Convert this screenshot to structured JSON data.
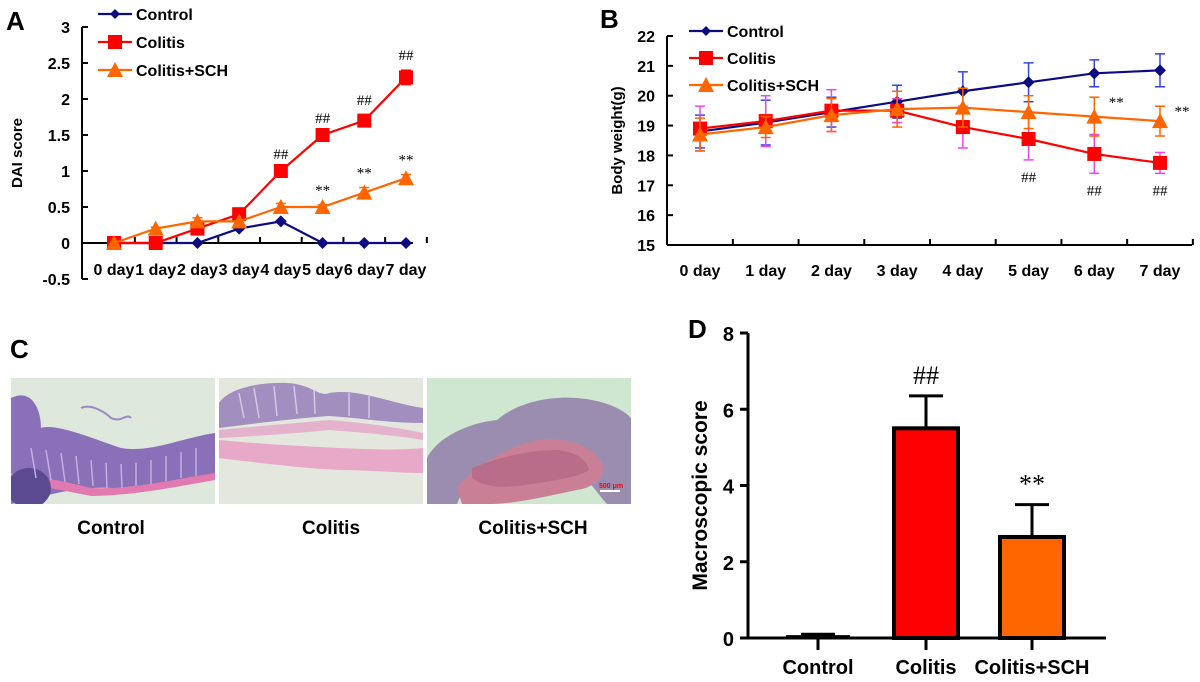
{
  "chart_data": [
    {
      "panel": "A",
      "type": "line",
      "title": "",
      "xlabel": "",
      "ylabel": "DAI score",
      "ylim": [
        -0.5,
        3
      ],
      "yticks": [
        "-0.5",
        "0",
        "0.5",
        "1",
        "1.5",
        "2",
        "2.5",
        "3"
      ],
      "categories": [
        "0 day",
        "1 day",
        "2 day",
        "3 day",
        "4 day",
        "5 day",
        "6 day",
        "7 day"
      ],
      "legend": "top-left",
      "series": [
        {
          "name": "Control",
          "color": "#0c0c80",
          "marker": "diamond",
          "values": [
            0,
            0,
            0,
            0.2,
            0.3,
            0,
            0,
            0
          ],
          "errors": [
            0,
            0,
            0,
            0,
            0,
            0,
            0,
            0
          ]
        },
        {
          "name": "Colitis",
          "color": "#ff0000",
          "marker": "square",
          "values": [
            0,
            0,
            0.2,
            0.4,
            1.0,
            1.5,
            1.7,
            2.3
          ],
          "errors": [
            0,
            0,
            0,
            0,
            0.03,
            0.03,
            0.08,
            0.1
          ],
          "annotations": [
            "",
            "",
            "",
            "",
            "##",
            "##",
            "##",
            "##"
          ]
        },
        {
          "name": "Colitis+SCH",
          "color": "#ff6600",
          "marker": "triangle",
          "values": [
            0,
            0.2,
            0.3,
            0.3,
            0.5,
            0.5,
            0.7,
            0.9
          ],
          "errors": [
            0,
            0.02,
            0.05,
            0,
            0.05,
            0.03,
            0.07,
            0.05
          ],
          "annotations": [
            "",
            "",
            "",
            "",
            "",
            "**",
            "**",
            "**"
          ]
        }
      ]
    },
    {
      "panel": "B",
      "type": "line",
      "title": "",
      "xlabel": "",
      "ylabel": "Body weight(g)",
      "ylim": [
        15,
        22
      ],
      "yticks": [
        "15",
        "16",
        "17",
        "18",
        "19",
        "20",
        "21",
        "22"
      ],
      "categories": [
        "0 day",
        "1 day",
        "2 day",
        "3 day",
        "4 day",
        "5 day",
        "6 day",
        "7 day"
      ],
      "legend": "top-left",
      "series": [
        {
          "name": "Control",
          "color": "#0c0c80",
          "errcolor": "#3344dd",
          "marker": "diamond",
          "values": [
            18.8,
            19.1,
            19.45,
            19.8,
            20.15,
            20.45,
            20.75,
            20.85
          ],
          "errors": [
            0.55,
            0.75,
            0.5,
            0.55,
            0.65,
            0.65,
            0.45,
            0.55
          ]
        },
        {
          "name": "Colitis",
          "color": "#ff0000",
          "errcolor": "#ee44ee",
          "marker": "square",
          "values": [
            18.9,
            19.15,
            19.5,
            19.5,
            18.95,
            18.55,
            18.05,
            17.75
          ],
          "errors": [
            0.75,
            0.85,
            0.7,
            0.4,
            0.7,
            0.7,
            0.65,
            0.35
          ],
          "annotations": [
            "",
            "",
            "",
            "",
            "",
            "##",
            "##",
            "##"
          ]
        },
        {
          "name": "Colitis+SCH",
          "color": "#ff6600",
          "errcolor": "#ff6600",
          "marker": "triangle",
          "values": [
            18.7,
            18.95,
            19.35,
            19.55,
            19.6,
            19.45,
            19.3,
            19.15
          ],
          "errors": [
            0.55,
            0.35,
            0.55,
            0.6,
            0.65,
            0.55,
            0.65,
            0.5
          ],
          "annotations": [
            "",
            "",
            "",
            "",
            "",
            "",
            "**",
            "**"
          ]
        }
      ]
    },
    {
      "panel": "D",
      "type": "bar",
      "title": "",
      "xlabel": "",
      "ylabel": "Macroscopic score",
      "ylim": [
        0,
        8
      ],
      "yticks": [
        "0",
        "2",
        "4",
        "6",
        "8"
      ],
      "categories": [
        "Control",
        "Colitis",
        "Colitis+SCH"
      ],
      "values": [
        0.05,
        5.5,
        2.65
      ],
      "errors": [
        0.05,
        0.85,
        0.85
      ],
      "colors": [
        "#ffffff",
        "#ff0000",
        "#ff6600"
      ],
      "annotations": [
        "",
        "##",
        "**"
      ]
    }
  ],
  "panels": {
    "a_letter": "A",
    "b_letter": "B",
    "c_letter": "C",
    "d_letter": "D"
  },
  "histology": {
    "labels": [
      "Control",
      "Colitis",
      "Colitis+SCH"
    ],
    "scale_bar": "500 μm"
  }
}
